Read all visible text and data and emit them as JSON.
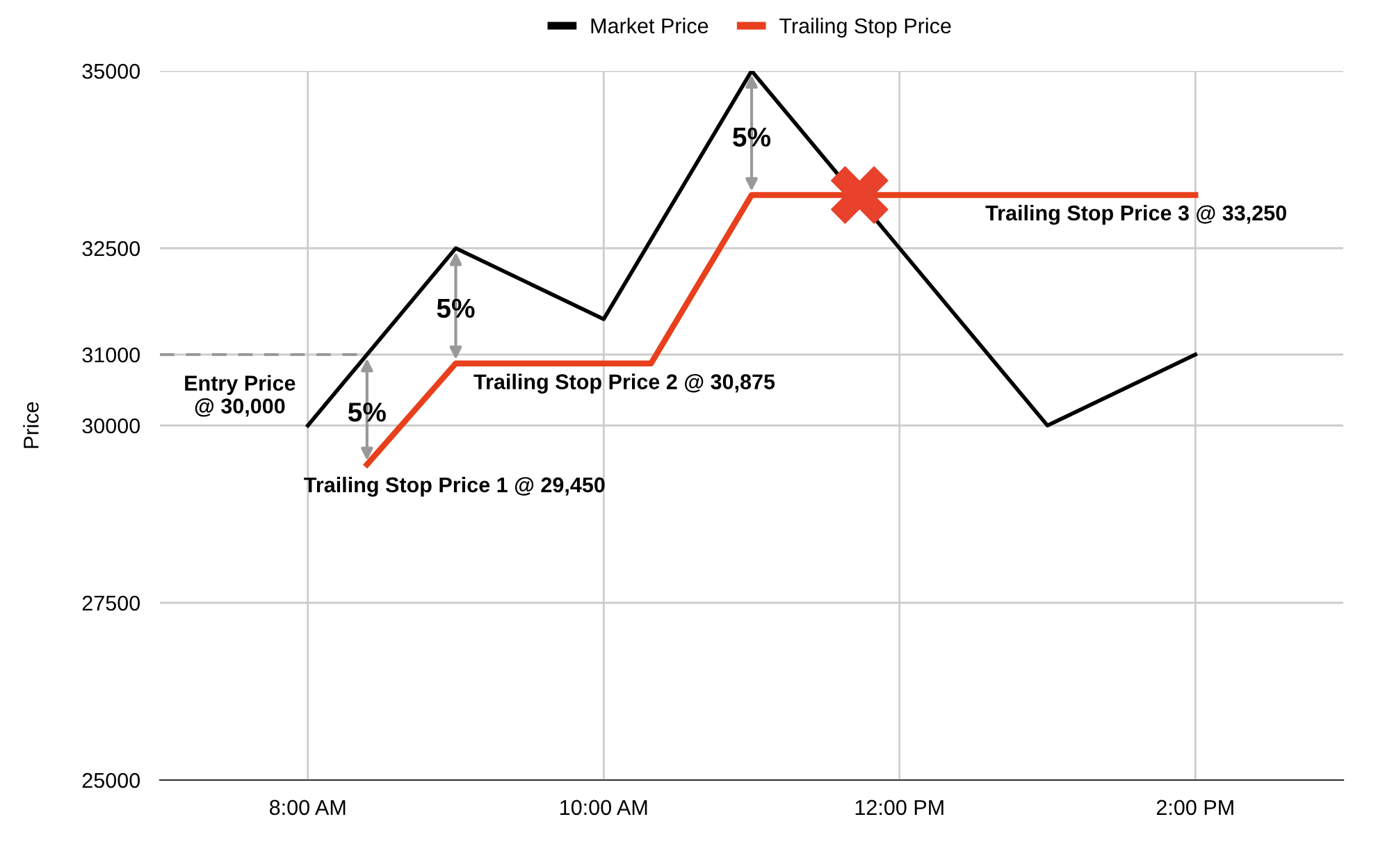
{
  "chart_data": {
    "type": "line",
    "ylabel": "Price",
    "xlim": [
      7,
      15
    ],
    "xticks": [
      {
        "value": 8,
        "label": "8:00 AM"
      },
      {
        "value": 10,
        "label": "10:00 AM"
      },
      {
        "value": 12,
        "label": "12:00 PM"
      },
      {
        "value": 14,
        "label": "2:00 PM"
      }
    ],
    "ylim": [
      25000,
      35000
    ],
    "yticks": [
      25000,
      27500,
      30000,
      31000,
      32500,
      35000
    ],
    "grid": true,
    "legend": "top",
    "series": [
      {
        "name": "Market Price",
        "color": "#000000",
        "x": [
          8,
          9,
          10,
          11,
          13,
          14
        ],
        "values": [
          30000,
          32500,
          31500,
          35000,
          30000,
          31000
        ]
      },
      {
        "name": "Trailing Stop Price",
        "color": "#e8401c",
        "x": [
          8.4,
          9,
          10.32,
          11,
          14
        ],
        "values": [
          29450,
          30875,
          30875,
          33250,
          33250
        ]
      },
      {
        "type": "line",
        "color": "#999999",
        "line_style": "dashed",
        "x": [
          7,
          8.4
        ],
        "values": [
          31000,
          31000
        ]
      },
      {
        "type": "scatter",
        "color": "#e8412c",
        "marker": "cross",
        "x": [
          11.73
        ],
        "values": [
          33250
        ]
      }
    ],
    "annotations": [
      "Entry Price\n@ 30,000",
      {
        "text": "5%",
        "x": 8.4,
        "y": 29450
      },
      {
        "text": "5%",
        "x": 9,
        "y": 30875
      },
      {
        "text": "5%",
        "x": 11,
        "y": 33250
      },
      {
        "text": "Trailing Stop Price 1 @ 29,450",
        "x": 8.4,
        "y": 29450
      },
      "Trailing Stop Price 2 @ 30,875",
      "Trailing Stop Price 3 @ 33,250"
    ]
  }
}
